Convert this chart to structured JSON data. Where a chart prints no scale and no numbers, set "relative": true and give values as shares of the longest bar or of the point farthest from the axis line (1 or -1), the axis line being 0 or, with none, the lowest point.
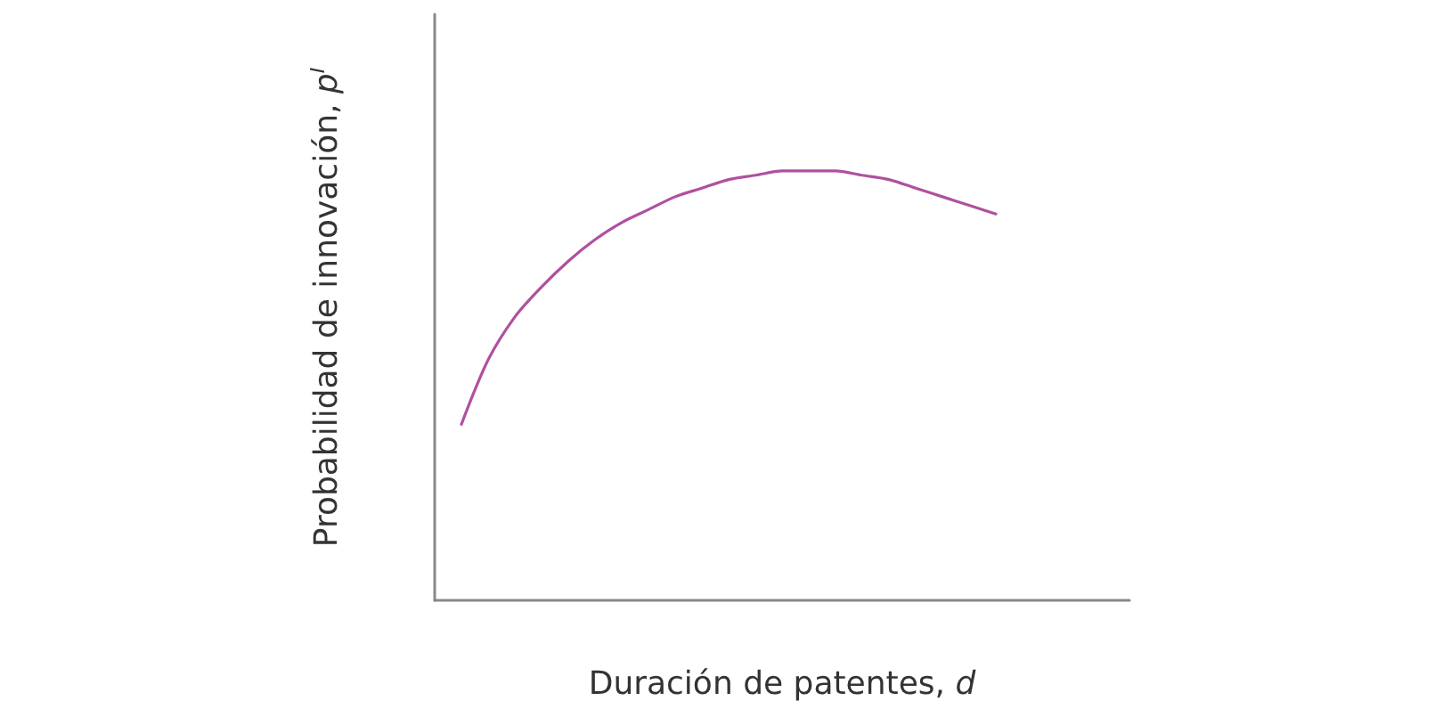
{
  "chart_data": {
    "type": "line",
    "relative": true,
    "xlabel": "Duración de patentes, d",
    "ylabel": "Probabilidad de innovación, p$^{I}$",
    "categories": [
      null,
      null,
      null,
      null,
      null,
      null,
      null,
      null,
      null,
      null,
      null,
      null,
      null,
      null,
      null,
      null,
      null,
      null,
      null,
      null,
      null,
      null,
      null,
      null,
      null,
      null,
      null
    ],
    "series": [
      {
        "color": "#b0509f",
        "values": [
          null,
          0.41,
          0.56,
          0.66,
          0.73,
          0.79,
          0.84,
          0.88,
          0.91,
          0.94,
          0.96,
          0.98,
          0.99,
          1.0,
          1.0,
          1.0,
          0.99,
          0.98,
          0.96,
          0.94,
          0.92,
          0.9,
          null,
          null,
          null,
          null,
          null
        ]
      }
    ],
    "grid": false,
    "marker": "none",
    "line_style": "solid"
  }
}
